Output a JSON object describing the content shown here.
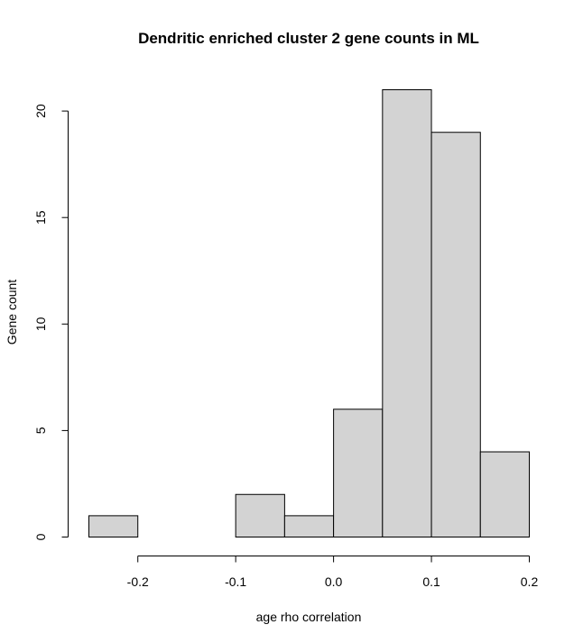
{
  "chart_data": {
    "type": "bar",
    "subtype": "histogram",
    "title": "Dendritic enriched cluster 2 gene counts in ML",
    "xlabel": "age rho correlation",
    "ylabel": "Gene count",
    "bin_edges": [
      -0.25,
      -0.2,
      -0.15,
      -0.1,
      -0.05,
      0.0,
      0.05,
      0.1,
      0.15,
      0.2
    ],
    "values": [
      1,
      0,
      0,
      2,
      1,
      6,
      21,
      19,
      4
    ],
    "xlim": [
      -0.25,
      0.2
    ],
    "ylim": [
      0,
      21
    ],
    "x_ticks": [
      -0.2,
      -0.1,
      0.0,
      0.1,
      0.2
    ],
    "x_tick_labels": [
      "-0.2",
      "-0.1",
      "0.0",
      "0.1",
      "0.2"
    ],
    "y_ticks": [
      0,
      5,
      10,
      15,
      20
    ],
    "y_tick_labels": [
      "0",
      "5",
      "10",
      "15",
      "20"
    ],
    "bar_color": "#d3d3d3",
    "edge_color": "#000000",
    "grid": false,
    "legend": "none"
  }
}
